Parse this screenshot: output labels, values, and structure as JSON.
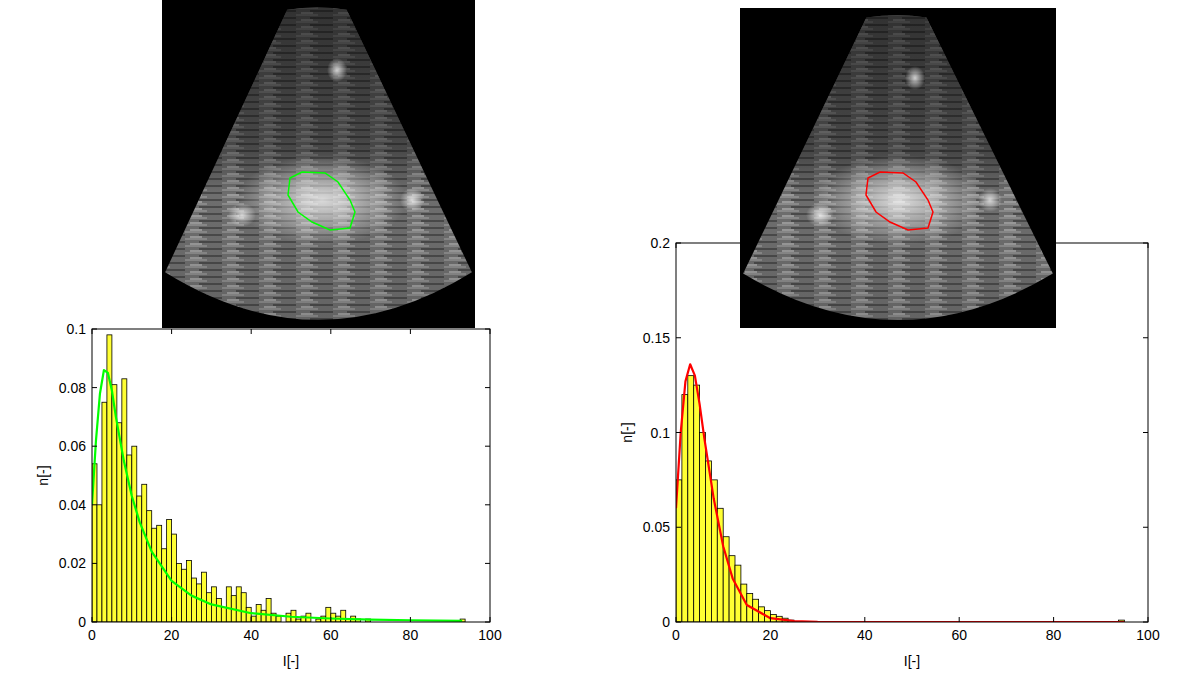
{
  "chart_data": [
    {
      "type": "histogram",
      "xlabel": "I[-]",
      "ylabel": "n[-]",
      "color": "#ffff33",
      "bins": [
        0,
        1.25,
        2.5,
        3.75,
        5,
        6.25,
        7.5,
        8.75,
        10,
        11.25,
        12.5,
        13.75,
        15,
        16.25,
        17.5,
        18.75,
        20,
        21.25,
        22.5,
        23.75,
        25,
        26.25,
        27.5,
        28.75,
        30,
        31.25,
        32.5,
        33.75,
        35,
        36.25,
        37.5,
        38.75,
        40,
        41.25,
        42.5,
        43.75,
        45,
        46.25,
        47.5,
        48.75,
        50,
        51.25,
        52.5,
        53.75,
        55,
        56.25,
        57.5,
        58.75,
        60,
        61.25,
        62.5,
        63.75,
        65,
        66.25,
        67.5,
        68.75,
        70,
        71.25,
        72.5,
        73.75,
        75,
        76.25,
        77.5,
        78.75,
        80,
        81.25,
        82.5,
        83.75,
        85,
        86.25,
        87.5,
        88.75,
        90,
        91.25,
        92.5,
        93.75,
        95
      ],
      "values": [
        0.054,
        0.04,
        0.075,
        0.098,
        0.081,
        0.068,
        0.083,
        0.057,
        0.06,
        0.043,
        0.047,
        0.038,
        0.032,
        0.033,
        0.025,
        0.035,
        0.03,
        0.02,
        0.018,
        0.021,
        0.015,
        0.013,
        0.017,
        0.01,
        0.012,
        0.008,
        0.005,
        0.012,
        0.009,
        0.012,
        0.01,
        0.005,
        0.002,
        0.006,
        0.004,
        0.008,
        0.003,
        0.002,
        0,
        0.003,
        0.004,
        0.001,
        0.002,
        0.003,
        0,
        0.001,
        0.002,
        0.005,
        0.003,
        0.002,
        0.004,
        0.001,
        0.002,
        0.001,
        0,
        0.001,
        0,
        0,
        0,
        0,
        0,
        0,
        0,
        0,
        0,
        0,
        0,
        0,
        0,
        0,
        0,
        0,
        0,
        0,
        0.001,
        0
      ],
      "xlim": [
        0,
        100
      ],
      "ylim": [
        0,
        0.1
      ],
      "xticks": [
        0,
        20,
        40,
        60,
        80,
        100
      ],
      "yticks": [
        0,
        0.02,
        0.04,
        0.06,
        0.08,
        0.1
      ],
      "series": [
        {
          "type": "line",
          "color": "#00ff00",
          "x": [
            0,
            1,
            2,
            3,
            4,
            5,
            6,
            8,
            10,
            12,
            15,
            20,
            25,
            30,
            40,
            50,
            60,
            70,
            80,
            93
          ],
          "values": [
            0.04,
            0.062,
            0.078,
            0.086,
            0.085,
            0.079,
            0.07,
            0.055,
            0.043,
            0.034,
            0.024,
            0.014,
            0.009,
            0.006,
            0.003,
            0.0018,
            0.0012,
            0.0008,
            0.0006,
            0.0004
          ]
        }
      ]
    },
    {
      "type": "histogram",
      "xlabel": "I[-]",
      "ylabel": "n[-]",
      "color": "#ffff33",
      "bins": [
        0,
        1.25,
        2.5,
        3.75,
        5,
        6.25,
        7.5,
        8.75,
        10,
        11.25,
        12.5,
        13.75,
        15,
        16.25,
        17.5,
        18.75,
        20,
        21.25,
        22.5,
        23.75,
        25,
        26.25,
        27.5,
        28.75,
        30,
        31.25,
        32.5,
        33.75,
        35,
        36.25,
        37.5,
        38.75,
        40,
        41.25,
        42.5,
        43.75,
        45,
        46.25,
        47.5,
        48.75,
        50,
        51.25,
        52.5,
        53.75,
        55,
        56.25,
        57.5,
        58.75,
        60,
        61.25,
        62.5,
        63.75,
        65,
        66.25,
        67.5,
        68.75,
        70,
        71.25,
        72.5,
        73.75,
        75,
        76.25,
        77.5,
        78.75,
        80,
        81.25,
        82.5,
        83.75,
        85,
        86.25,
        87.5,
        88.75,
        90,
        91.25,
        92.5,
        93.75,
        95
      ],
      "values": [
        0.075,
        0.12,
        0.13,
        0.125,
        0.1,
        0.085,
        0.075,
        0.06,
        0.045,
        0.035,
        0.03,
        0.02,
        0.015,
        0.012,
        0.008,
        0.006,
        0.004,
        0.003,
        0.002,
        0.001,
        0,
        0,
        0,
        0,
        0,
        0,
        0,
        0,
        0,
        0,
        0,
        0,
        0,
        0,
        0,
        0,
        0,
        0,
        0,
        0,
        0,
        0,
        0,
        0,
        0,
        0,
        0,
        0,
        0,
        0,
        0,
        0,
        0,
        0,
        0,
        0,
        0,
        0,
        0,
        0,
        0,
        0,
        0,
        0,
        0,
        0,
        0,
        0,
        0,
        0,
        0,
        0,
        0,
        0,
        0,
        0.001
      ],
      "xlim": [
        0,
        100
      ],
      "ylim": [
        0,
        0.2
      ],
      "xticks": [
        0,
        20,
        40,
        60,
        80,
        100
      ],
      "yticks": [
        0,
        0.05,
        0.1,
        0.15,
        0.2
      ],
      "series": [
        {
          "type": "line",
          "color": "#ff0000",
          "x": [
            0,
            1,
            2,
            3,
            4,
            5,
            6,
            8,
            10,
            12,
            15,
            20,
            25,
            30,
            40,
            60,
            80,
            95
          ],
          "values": [
            0.06,
            0.1,
            0.127,
            0.136,
            0.13,
            0.115,
            0.097,
            0.065,
            0.04,
            0.023,
            0.009,
            0.002,
            0.0005,
            0.0001,
            0,
            0,
            0,
            0
          ]
        }
      ]
    }
  ]
}
